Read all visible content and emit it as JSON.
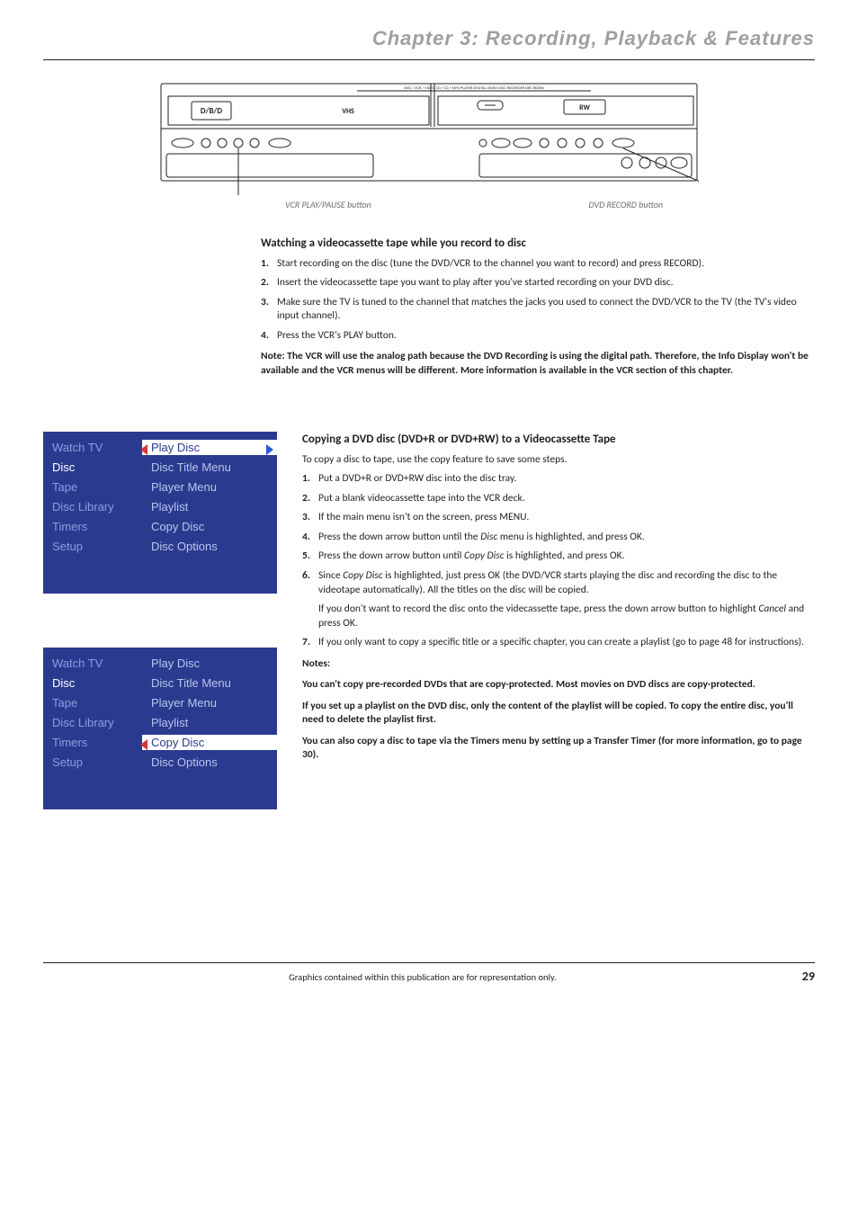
{
  "chapter": {
    "title": "Chapter 3: Recording, Playback & Features"
  },
  "device": {
    "vcr_caption": "VCR PLAY/PAUSE button",
    "dvd_caption": "DVD RECORD button",
    "top_text": "DVD / VCR / VIDEO CD / CD / MP3 PLAYER   DIGITAL VIDEO DISC RECORDER   DRC 8030N",
    "logo_left": "D/B/D",
    "logo_mid": "VHS",
    "colors": {
      "stroke": "#231f20",
      "fill": "#ffffff"
    }
  },
  "section1": {
    "title": "Watching a videocassette tape while you record to disc",
    "steps": [
      "Start recording on the disc (tune the DVD/VCR to the channel you want to record) and press RECORD).",
      "Insert the videocassette tape you want to play after you've started recording on your DVD disc.",
      "Make sure the TV is tuned to the channel that matches the jacks you used to connect the DVD/VCR to the TV (the TV's video input channel).",
      "Press the VCR's PLAY button."
    ],
    "note": "Note: The VCR will use the analog path because the DVD Recording is using the digital path. Therefore, the Info Display won't be available and the VCR menus will be different. More information is available in the VCR section of this chapter."
  },
  "menus": {
    "left_items": [
      "Watch TV",
      "Disc",
      "Tape",
      "Disc Library",
      "Timers",
      "Setup"
    ],
    "right_items": [
      "Play Disc",
      "Disc Title Menu",
      "Player Menu",
      "Playlist",
      "Copy Disc",
      "Disc Options"
    ],
    "panel1_sel_right_idx": 0,
    "panel2_sel_right_idx": 4,
    "left_sel_idx": 1,
    "colors": {
      "bg": "#2a3b8f",
      "dim": "#8b9de0",
      "dim2": "#b9c5ee",
      "sel_bg": "#ffffff",
      "sel_fg": "#2a3b8f",
      "arrow_blue": "#2458d6",
      "arrow_red": "#d23a3a"
    }
  },
  "section2": {
    "title": "Copying a DVD disc (DVD+R or DVD+RW) to a Videocassette Tape",
    "intro": "To copy a disc to tape, use the copy feature to save some steps.",
    "steps": [
      {
        "n": "1.",
        "t": "Put a DVD+R or DVD+RW disc into the disc tray."
      },
      {
        "n": "2.",
        "t": "Put a blank videocassette tape into the VCR deck."
      },
      {
        "n": "3.",
        "t": "If the main menu isn't on the screen, press MENU."
      },
      {
        "n": "4.",
        "pre": "Press the down arrow button until the ",
        "em": "Disc",
        "post": " menu is highlighted, and press OK."
      },
      {
        "n": "5.",
        "pre": "Press the down arrow button until ",
        "em": "Copy Disc",
        "post": " is highlighted, and press OK."
      },
      {
        "n": "6.",
        "pre": "Since ",
        "em": "Copy Disc",
        "post": " is highlighted, just press OK (the DVD/VCR starts playing the disc and recording the disc to the videotape automatically). All the titles on the disc will be copied."
      }
    ],
    "after6_pre": "If you don't want to record the disc onto the videcassette tape, press the down arrow button to highlight ",
    "after6_em": "Cancel",
    "after6_post": " and press OK.",
    "step7": {
      "n": "7.",
      "t": "If you only want to copy a specific title or a specific chapter, you can create a playlist (go to page 48 for instructions)."
    },
    "notes_head": "Notes:",
    "note1": "You can't copy pre-recorded DVDs that are copy-protected. Most movies on DVD discs are copy-protected.",
    "note2": "If you set up a playlist on the DVD disc, only the content of the playlist will be copied. To copy the entire disc, you'll need to delete the playlist first.",
    "note3": "You can also copy a disc to tape via the Timers menu by setting up a Transfer Timer (for more information, go to page 30)."
  },
  "footer": {
    "text": "Graphics contained within this publication are for representation only.",
    "page": "29"
  }
}
